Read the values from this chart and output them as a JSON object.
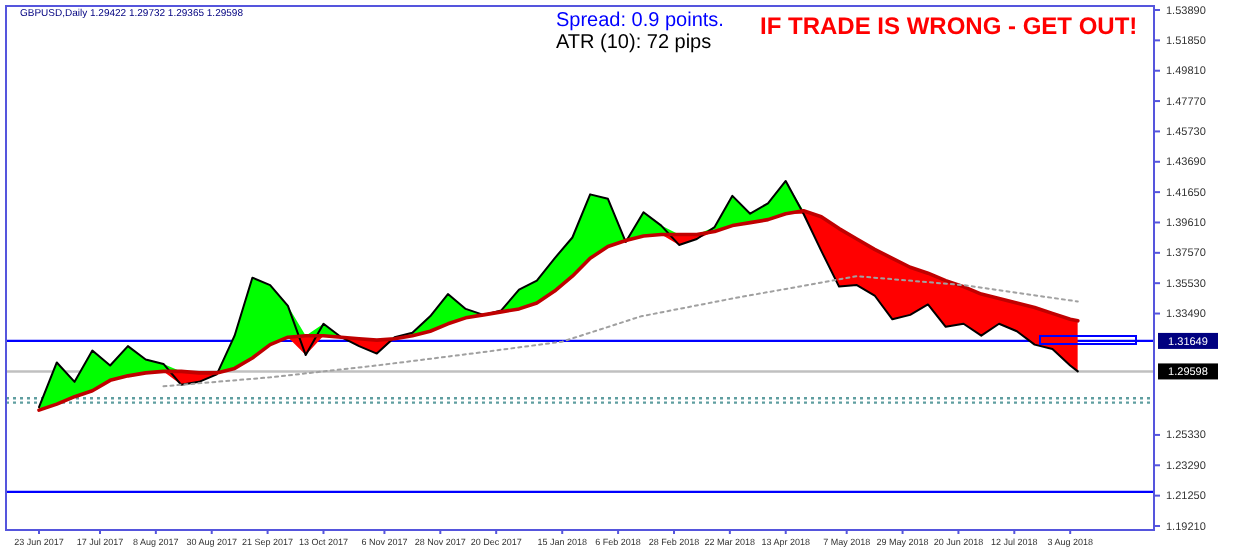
{
  "chart_data": {
    "type": "line",
    "title": "GBPUSD,Daily 1.29422 1.29732 1.29365 1.29598",
    "annotations": [
      "Spread: 0.9 points.",
      "ATR (10): 72 pips",
      "IF TRADE IS WRONG - GET OUT!"
    ],
    "x": [
      "2017-06-23",
      "2017-06-30",
      "2017-07-07",
      "2017-07-14",
      "2017-07-21",
      "2017-07-28",
      "2017-08-04",
      "2017-08-11",
      "2017-08-18",
      "2017-08-25",
      "2017-09-01",
      "2017-09-08",
      "2017-09-15",
      "2017-09-22",
      "2017-09-29",
      "2017-10-06",
      "2017-10-13",
      "2017-10-20",
      "2017-10-27",
      "2017-11-03",
      "2017-11-10",
      "2017-11-17",
      "2017-11-24",
      "2017-12-01",
      "2017-12-08",
      "2017-12-15",
      "2017-12-22",
      "2017-12-29",
      "2018-01-05",
      "2018-01-12",
      "2018-01-19",
      "2018-01-26",
      "2018-02-02",
      "2018-02-09",
      "2018-02-16",
      "2018-02-23",
      "2018-03-02",
      "2018-03-09",
      "2018-03-16",
      "2018-03-23",
      "2018-03-30",
      "2018-04-06",
      "2018-04-13",
      "2018-04-20",
      "2018-04-27",
      "2018-05-04",
      "2018-05-11",
      "2018-05-18",
      "2018-05-25",
      "2018-06-01",
      "2018-06-08",
      "2018-06-15",
      "2018-06-22",
      "2018-06-29",
      "2018-07-06",
      "2018-07-13",
      "2018-07-20",
      "2018-07-27",
      "2018-08-03",
      "2018-08-06"
    ],
    "series": [
      {
        "color": "#000000",
        "values": [
          1.272,
          1.302,
          1.289,
          1.31,
          1.3,
          1.313,
          1.304,
          1.301,
          1.287,
          1.289,
          1.294,
          1.32,
          1.359,
          1.354,
          1.34,
          1.307,
          1.328,
          1.319,
          1.313,
          1.308,
          1.319,
          1.322,
          1.333,
          1.348,
          1.338,
          1.334,
          1.337,
          1.351,
          1.357,
          1.372,
          1.386,
          1.415,
          1.412,
          1.383,
          1.403,
          1.394,
          1.381,
          1.385,
          1.393,
          1.414,
          1.402,
          1.409,
          1.424,
          1.402,
          1.377,
          1.353,
          1.354,
          1.347,
          1.331,
          1.334,
          1.341,
          1.326,
          1.328,
          1.32,
          1.328,
          1.323,
          1.314,
          1.311,
          1.3,
          1.296
        ]
      },
      {
        "color": "#c00000",
        "lower": [
          1.27,
          1.274,
          1.279,
          1.283,
          1.29,
          1.293,
          1.295,
          1.296,
          1.287,
          1.289,
          1.294,
          1.298,
          1.305,
          1.314,
          1.319,
          1.307,
          1.32,
          1.319,
          1.313,
          1.308,
          1.318,
          1.32,
          1.323,
          1.328,
          1.332,
          1.334,
          1.336,
          1.338,
          1.342,
          1.35,
          1.36,
          1.372,
          1.38,
          1.383,
          1.387,
          1.388,
          1.381,
          1.385,
          1.39,
          1.394,
          1.396,
          1.398,
          1.402,
          1.402,
          1.377,
          1.353,
          1.354,
          1.347,
          1.331,
          1.334,
          1.341,
          1.326,
          1.328,
          1.32,
          1.328,
          1.323,
          1.314,
          1.311,
          1.3,
          1.296
        ],
        "upper": [
          1.272,
          1.302,
          1.289,
          1.31,
          1.3,
          1.313,
          1.304,
          1.301,
          1.296,
          1.295,
          1.295,
          1.32,
          1.359,
          1.354,
          1.34,
          1.32,
          1.328,
          1.319,
          1.318,
          1.317,
          1.319,
          1.322,
          1.333,
          1.348,
          1.338,
          1.334,
          1.337,
          1.351,
          1.357,
          1.372,
          1.386,
          1.415,
          1.412,
          1.384,
          1.403,
          1.394,
          1.388,
          1.388,
          1.393,
          1.414,
          1.402,
          1.409,
          1.424,
          1.404,
          1.4,
          1.392,
          1.385,
          1.378,
          1.372,
          1.366,
          1.362,
          1.357,
          1.353,
          1.348,
          1.345,
          1.342,
          1.339,
          1.335,
          1.331,
          1.33
        ],
        "values": [
          1.27,
          1.274,
          1.279,
          1.283,
          1.29,
          1.293,
          1.295,
          1.296,
          1.296,
          1.295,
          1.295,
          1.298,
          1.305,
          1.314,
          1.319,
          1.32,
          1.32,
          1.319,
          1.318,
          1.317,
          1.318,
          1.32,
          1.323,
          1.328,
          1.332,
          1.334,
          1.336,
          1.338,
          1.342,
          1.35,
          1.36,
          1.372,
          1.38,
          1.384,
          1.387,
          1.388,
          1.388,
          1.388,
          1.39,
          1.394,
          1.396,
          1.398,
          1.402,
          1.404,
          1.4,
          1.392,
          1.385,
          1.378,
          1.372,
          1.366,
          1.362,
          1.357,
          1.353,
          1.348,
          1.345,
          1.342,
          1.339,
          1.335,
          1.331,
          1.33
        ]
      },
      {
        "color": "#a0a0a0",
        "line_style": "dotted",
        "x": [
          "2017-08-11",
          "2017-09-22",
          "2017-11-03",
          "2017-12-15",
          "2018-01-15",
          "2018-02-15",
          "2018-03-23",
          "2018-05-11",
          "2018-06-22",
          "2018-08-06"
        ],
        "values": [
          1.286,
          1.292,
          1.3,
          1.309,
          1.316,
          1.333,
          1.345,
          1.36,
          1.354,
          1.343
        ]
      }
    ],
    "xlim": [
      "2017-06-10",
      "2018-09-05"
    ],
    "xticks": [
      {
        "value": "2017-06-23",
        "label": "23 Jun 2017"
      },
      {
        "value": "2017-07-17",
        "label": "17 Jul 2017"
      },
      {
        "value": "2017-08-08",
        "label": "8 Aug 2017"
      },
      {
        "value": "2017-08-30",
        "label": "30 Aug 2017"
      },
      {
        "value": "2017-09-21",
        "label": "21 Sep 2017"
      },
      {
        "value": "2017-10-13",
        "label": "13 Oct 2017"
      },
      {
        "value": "2017-11-06",
        "label": "6 Nov 2017"
      },
      {
        "value": "2017-11-28",
        "label": "28 Nov 2017"
      },
      {
        "value": "2017-12-20",
        "label": "20 Dec 2017"
      },
      {
        "value": "2018-01-15",
        "label": "15 Jan 2018"
      },
      {
        "value": "2018-02-06",
        "label": "6 Feb 2018"
      },
      {
        "value": "2018-02-28",
        "label": "28 Feb 2018"
      },
      {
        "value": "2018-03-22",
        "label": "22 Mar 2018"
      },
      {
        "value": "2018-04-13",
        "label": "13 Apr 2018"
      },
      {
        "value": "2018-05-07",
        "label": "7 May 2018"
      },
      {
        "value": "2018-05-29",
        "label": "29 May 2018"
      },
      {
        "value": "2018-06-20",
        "label": "20 Jun 2018"
      },
      {
        "value": "2018-07-12",
        "label": "12 Jul 2018"
      },
      {
        "value": "2018-08-03",
        "label": "3 Aug 2018"
      }
    ],
    "ylim": [
      1.1894,
      1.5416
    ],
    "yticks": [
      {
        "value": 1.5389,
        "label": "1.53890"
      },
      {
        "value": 1.5185,
        "label": "1.51850"
      },
      {
        "value": 1.4981,
        "label": "1.49810"
      },
      {
        "value": 1.4777,
        "label": "1.47770"
      },
      {
        "value": 1.4573,
        "label": "1.45730"
      },
      {
        "value": 1.4369,
        "label": "1.43690"
      },
      {
        "value": 1.4165,
        "label": "1.41650"
      },
      {
        "value": 1.3961,
        "label": "1.39610"
      },
      {
        "value": 1.3757,
        "label": "1.37570"
      },
      {
        "value": 1.3553,
        "label": "1.35530"
      },
      {
        "value": 1.3349,
        "label": "1.33490"
      },
      {
        "value": 1.2533,
        "label": "1.25330"
      },
      {
        "value": 1.2329,
        "label": "1.23290"
      },
      {
        "value": 1.2125,
        "label": "1.21250"
      },
      {
        "value": 1.1921,
        "label": "1.19210"
      }
    ],
    "ref_lines": [
      {
        "axis": "y",
        "value": 1.31649,
        "label": "1.31649",
        "color": "#0000ff"
      },
      {
        "axis": "y",
        "value": 1.29598,
        "label": "1.29598",
        "color": "#c0c0c0"
      },
      {
        "axis": "y",
        "value": 1.278,
        "label": null,
        "color": "#5f9ea0",
        "line_style": "dotted"
      },
      {
        "axis": "y",
        "value": 1.275,
        "label": null,
        "color": "#5f9ea0",
        "line_style": "dotted"
      },
      {
        "axis": "y",
        "value": 1.215,
        "label": null,
        "color": "#0000ff"
      }
    ],
    "line_style": "solid"
  }
}
